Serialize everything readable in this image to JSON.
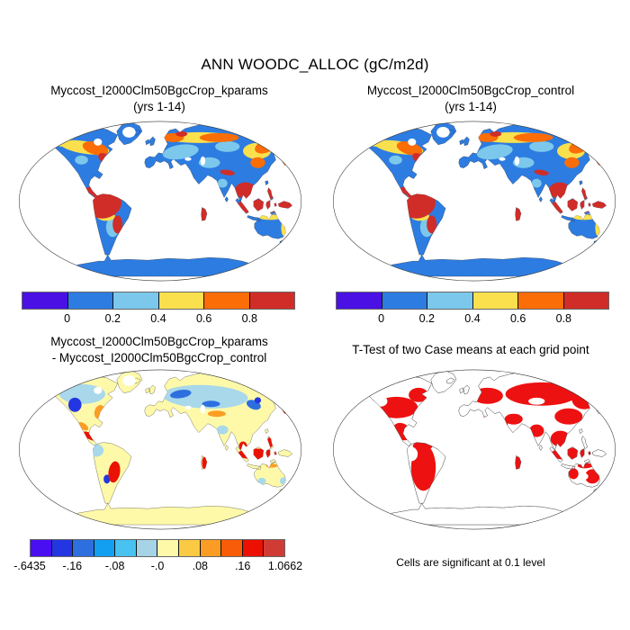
{
  "figure": {
    "main_title": "ANN WOODC_ALLOC (gC/m2d)"
  },
  "panels": {
    "kparams": {
      "title_line1": "Myccost_I2000Clm50BgcCrop_kparams",
      "title_line2": "(yrs 1-14)"
    },
    "control": {
      "title_line1": "Myccost_I2000Clm50BgcCrop_control",
      "title_line2": "(yrs 1-14)"
    },
    "diff": {
      "title_line1": "Myccost_I2000Clm50BgcCrop_kparams",
      "title_line2": "- Myccost_I2000Clm50BgcCrop_control"
    },
    "ttest": {
      "title_line1": "T-Test of two Case means at each grid point",
      "caption": "Cells are significant at 0.1 level"
    }
  },
  "colorbars": {
    "values": {
      "segments": 6,
      "colors": [
        "#4a10e4",
        "#2d7ce1",
        "#7cc8ec",
        "#fbe04e",
        "#fb6d07",
        "#d02d28"
      ],
      "ticks": [
        {
          "label": "0",
          "pos": 1
        },
        {
          "label": "0.2",
          "pos": 2
        },
        {
          "label": "0.4",
          "pos": 3
        },
        {
          "label": "0.6",
          "pos": 4
        },
        {
          "label": "0.8",
          "pos": 5
        }
      ]
    },
    "diff": {
      "segments": 12,
      "colors": [
        "#4a0ff0",
        "#2336e2",
        "#2e6fe0",
        "#129ff2",
        "#48c2f0",
        "#a6d4e6",
        "#fdf9a9",
        "#fbca45",
        "#fb9d25",
        "#f95c08",
        "#ec1000",
        "#d03c33"
      ],
      "ticks": [
        {
          "label": "-.6435",
          "pos": 0
        },
        {
          "label": "-.16",
          "pos": 2
        },
        {
          "label": "-.08",
          "pos": 4
        },
        {
          "label": "-.0",
          "pos": 6
        },
        {
          "label": ".08",
          "pos": 8
        },
        {
          "label": ".16",
          "pos": 10
        },
        {
          "label": "1.0662",
          "pos": 12
        }
      ]
    }
  },
  "map_palette": {
    "ocean": "#ffffff",
    "value_base_blue": "#2d7ce1",
    "value_lightblue": "#7cc8ec",
    "value_yellow": "#fbe04e",
    "value_orange": "#fb6d07",
    "value_red": "#d02d28",
    "diff_base_paleyellow": "#fdf9a9",
    "diff_lightblue": "#a8d8ea",
    "diff_midblue": "#2e6fe0",
    "diff_darkblue": "#2336e2",
    "diff_orange": "#fb9d25",
    "diff_red": "#ea1205",
    "ttest_significant_red": "#ee1111",
    "coastline": "#333333"
  }
}
